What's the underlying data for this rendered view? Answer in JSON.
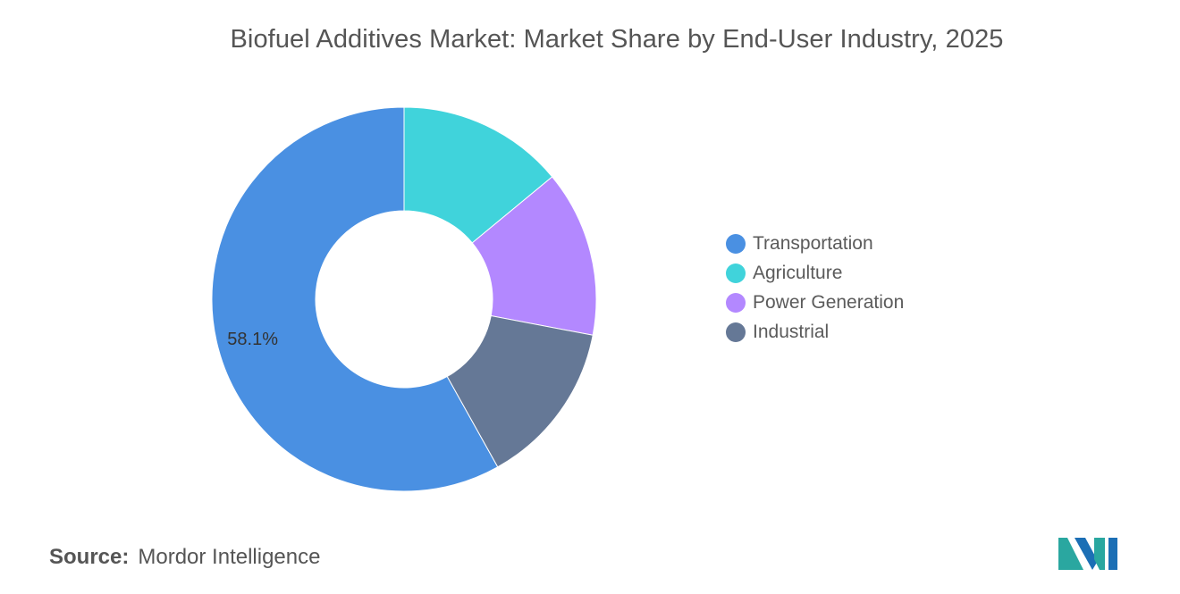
{
  "title": "Biofuel Additives Market: Market Share by End-User Industry, 2025",
  "chart_data": {
    "type": "pie",
    "variant": "donut",
    "title": "Biofuel Additives Market: Market Share by End-User Industry, 2025",
    "unit": "%",
    "series": [
      {
        "name": "Transportation",
        "value": 58.1,
        "label": "58.1%",
        "color": "#4a90e2"
      },
      {
        "name": "Agriculture",
        "value": 14.0,
        "label": "",
        "color": "#40d3db"
      },
      {
        "name": "Power Generation",
        "value": 14.0,
        "label": "",
        "color": "#b388ff"
      },
      {
        "name": "Industrial",
        "value": 13.9,
        "label": "",
        "color": "#657896"
      }
    ],
    "legend_position": "right"
  },
  "source": {
    "label": "Source:",
    "text": "Mordor Intelligence"
  },
  "logo": {
    "name": "mordor-intelligence-logo",
    "colors": [
      "#2aa7a0",
      "#1c6fb5"
    ]
  }
}
